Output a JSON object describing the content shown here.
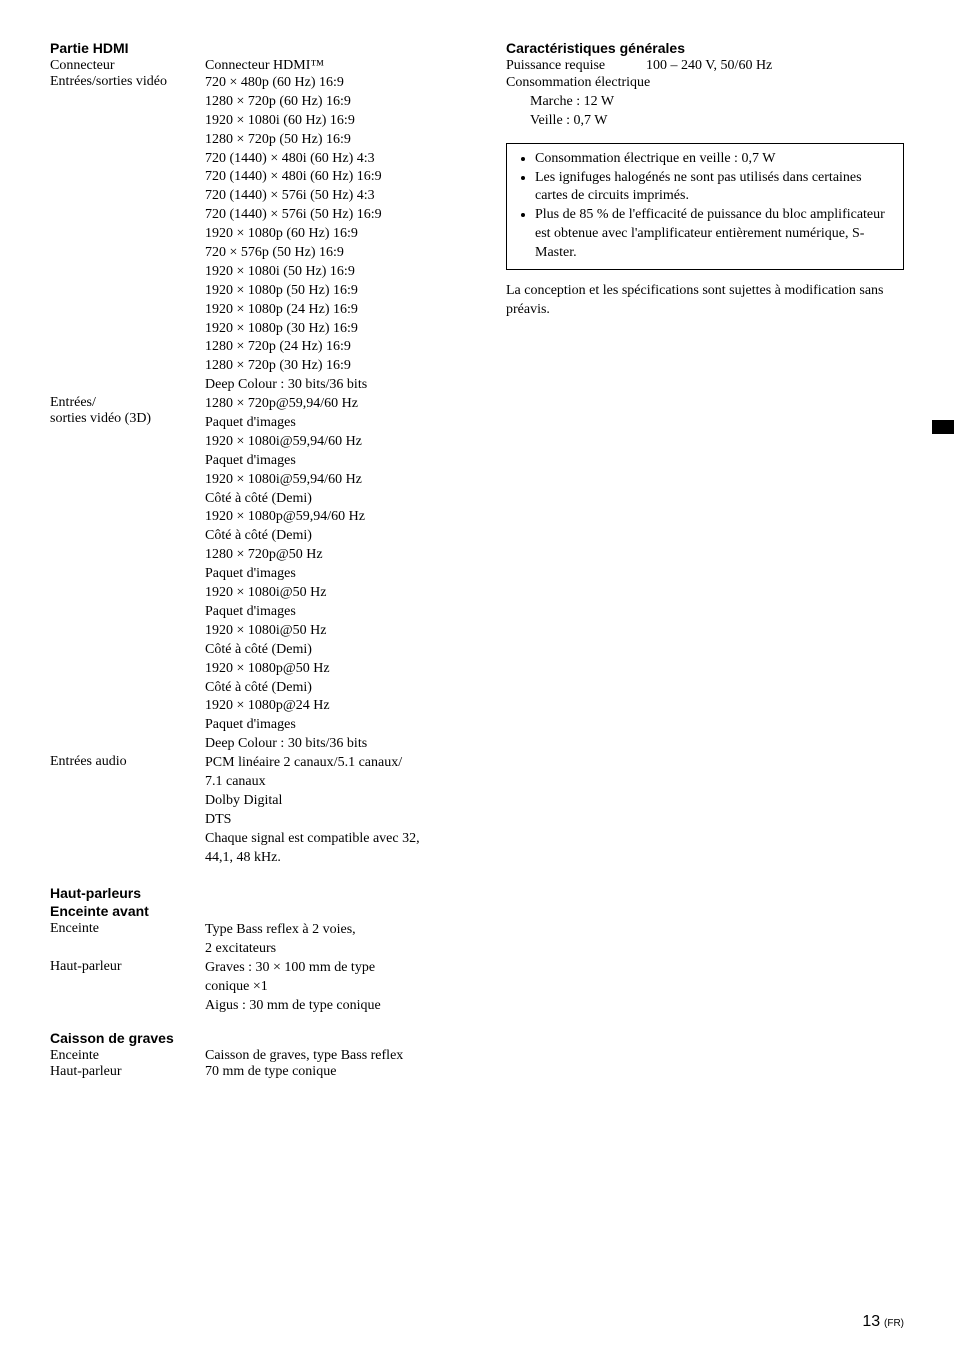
{
  "left": {
    "hdmi_heading": "Partie HDMI",
    "connector_label": "Connecteur",
    "connector_value": "Connecteur HDMI™",
    "io_video_label": "Entrées/sorties vidéo",
    "io_video_values": [
      "720 × 480p (60 Hz) 16:9",
      "1280 × 720p (60 Hz) 16:9",
      "1920 × 1080i (60 Hz) 16:9",
      "1280 × 720p (50 Hz) 16:9",
      "720 (1440) × 480i (60 Hz) 4:3",
      "720 (1440) × 480i (60 Hz) 16:9",
      "720 (1440) × 576i (50 Hz) 4:3",
      "720 (1440) × 576i (50 Hz) 16:9",
      "1920 × 1080p (60 Hz) 16:9",
      "720 × 576p (50 Hz) 16:9",
      "1920 × 1080i (50 Hz) 16:9",
      "1920 × 1080p (50 Hz) 16:9",
      "1920 × 1080p (24 Hz) 16:9",
      "1920 × 1080p (30 Hz) 16:9",
      "1280 × 720p (24 Hz) 16:9",
      "1280 × 720p (30 Hz) 16:9",
      "Deep Colour : 30 bits/36 bits"
    ],
    "io_video_3d_label1": "Entrées/",
    "io_video_3d_label2": "sorties vidéo (3D)",
    "io_video_3d_values": [
      "1280 × 720p@59,94/60 Hz",
      "Paquet d'images",
      "1920 × 1080i@59,94/60 Hz",
      "Paquet d'images",
      "1920 × 1080i@59,94/60 Hz",
      "Côté à côté (Demi)",
      "1920 × 1080p@59,94/60 Hz",
      "Côté à côté (Demi)",
      "1280 × 720p@50 Hz",
      "Paquet d'images",
      "1920 × 1080i@50 Hz",
      "Paquet d'images",
      "1920 × 1080i@50 Hz",
      "Côté à côté (Demi)",
      "1920 × 1080p@50 Hz",
      "Côté à côté (Demi)",
      "1920 × 1080p@24 Hz",
      "Paquet d'images",
      "Deep Colour : 30 bits/36 bits"
    ],
    "audio_in_label": "Entrées audio",
    "audio_in_values": [
      "PCM linéaire 2 canaux/5.1 canaux/",
      "7.1 canaux",
      "Dolby Digital",
      "DTS",
      "Chaque signal est compatible avec 32,",
      "44,1, 48 kHz."
    ],
    "speakers_heading": "Haut-parleurs",
    "front_heading": "Enceinte avant",
    "front_enceinte_label": "Enceinte",
    "front_enceinte_values": [
      "Type Bass reflex à 2 voies,",
      "2 excitateurs"
    ],
    "front_hp_label": "Haut-parleur",
    "front_hp_values": [
      "Graves : 30 × 100 mm de type",
      "conique ×1",
      "Aigus : 30 mm de type conique"
    ],
    "sub_heading": "Caisson de graves",
    "sub_enceinte_label": "Enceinte",
    "sub_enceinte_value": "Caisson de graves, type Bass reflex",
    "sub_hp_label": "Haut-parleur",
    "sub_hp_value": "70 mm de type conique"
  },
  "right": {
    "general_heading": "Caractéristiques générales",
    "power_label": "Puissance requise",
    "power_value": "100 – 240 V, 50/60 Hz",
    "consumption_label": "Consommation électrique",
    "consumption_on": "Marche : 12 W",
    "consumption_standby": "Veille : 0,7 W",
    "notes": [
      "Consommation électrique en veille : 0,7 W",
      "Les ignifuges halogénés ne sont pas utilisés dans certaines cartes de circuits imprimés.",
      "Plus de 85 % de l'efficacité de puissance du bloc amplificateur est obtenue avec l'amplificateur entièrement numérique, S-Master."
    ],
    "closing": "La conception et les spécifications sont sujettes à modification sans préavis."
  },
  "page_number_big": "13",
  "page_number_small": "(FR)"
}
